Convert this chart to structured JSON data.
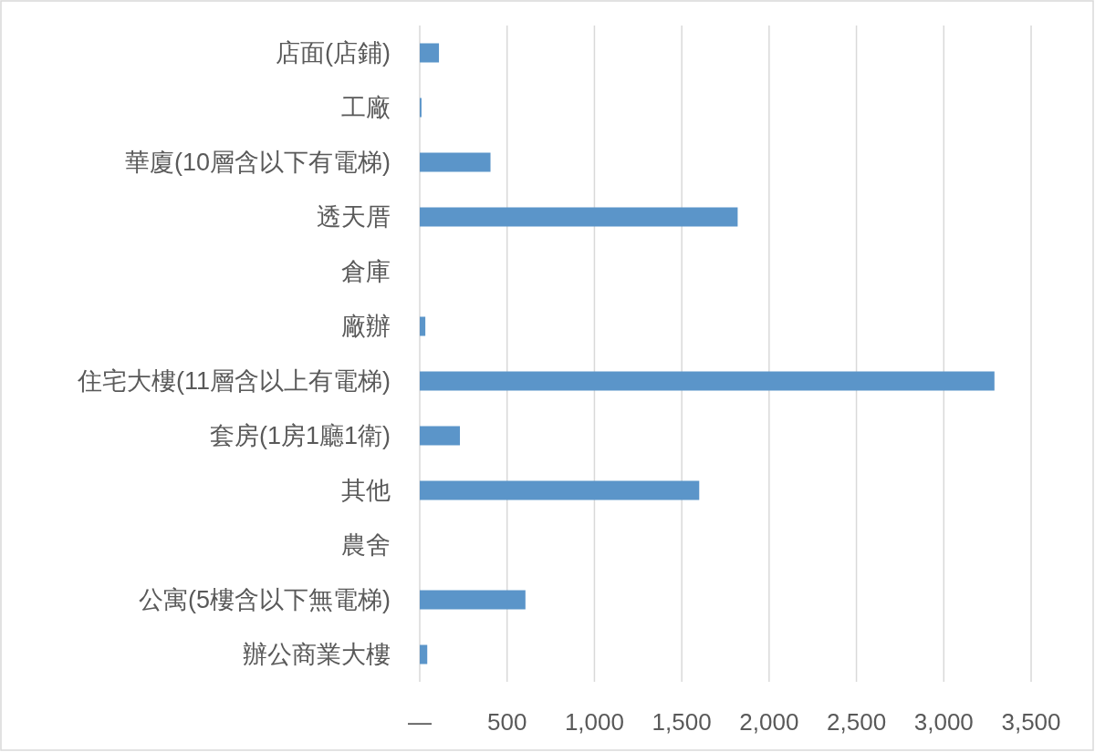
{
  "chart_data": {
    "type": "bar",
    "orientation": "horizontal",
    "categories": [
      "店面(店鋪)",
      "工廠",
      "華廈(10層含以下有電梯)",
      "透天厝",
      "倉庫",
      "廠辦",
      "住宅大樓(11層含以上有電梯)",
      "套房(1房1廳1衛)",
      "其他",
      "農舍",
      "公寓(5樓含以下無電梯)",
      "辦公商業大樓"
    ],
    "values": [
      110,
      10,
      405,
      1820,
      null,
      32,
      3290,
      230,
      1600,
      null,
      605,
      43
    ],
    "color": "#5b95c9",
    "xlim": [
      0,
      3500
    ],
    "xticks": [
      {
        "value": 0,
        "label": "—"
      },
      {
        "value": 500,
        "label": "500"
      },
      {
        "value": 1000,
        "label": "1,000"
      },
      {
        "value": 1500,
        "label": "1,500"
      },
      {
        "value": 2000,
        "label": "2,000"
      },
      {
        "value": 2500,
        "label": "2,500"
      },
      {
        "value": 3000,
        "label": "3,000"
      },
      {
        "value": 3500,
        "label": "3,500"
      }
    ],
    "grid": "x"
  }
}
